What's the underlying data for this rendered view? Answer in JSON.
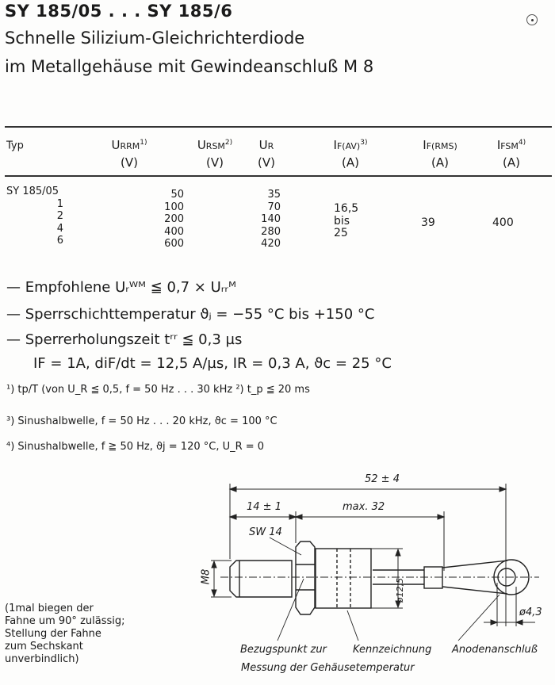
{
  "title": "SY 185/05 . . . SY 185/6",
  "subtitle_1": "Schnelle Silizium-Gleichrichterdiode",
  "subtitle_2": "im Metallgehäuse mit Gewindeanschluß M 8",
  "table": {
    "headers": [
      {
        "main": "Typ",
        "sub": "",
        "sup": "",
        "unit": ""
      },
      {
        "main": "U",
        "sub": "RRM",
        "sup": "1)",
        "unit": "(V)"
      },
      {
        "main": "U",
        "sub": "RSM",
        "sup": "2)",
        "unit": "(V)"
      },
      {
        "main": "U",
        "sub": "R",
        "sup": "",
        "unit": "(V)"
      },
      {
        "main": "I",
        "sub": "F(AV)",
        "sup": "3)",
        "unit": "(A)"
      },
      {
        "main": "I",
        "sub": "F(RMS)",
        "sup": "",
        "unit": "(A)"
      },
      {
        "main": "I",
        "sub": "FSM",
        "sup": "4)",
        "unit": "(A)"
      }
    ],
    "types": [
      "SY  185/05",
      "1",
      "2",
      "4",
      "6"
    ],
    "urrm": [
      "50",
      "100",
      "200",
      "400",
      "600"
    ],
    "ur": [
      "35",
      "70",
      "140",
      "280",
      "420"
    ],
    "ifav": [
      "16,5",
      "bis",
      "25"
    ],
    "ifrms": "39",
    "ifsm": "400"
  },
  "specs": [
    "— Empfohlene Uᵣᵂᴹ ≦ 0,7 × Uᵣᵣᴹ",
    "— Sperrschichttemperatur     ϑⱼ = −55 °C bis +150 °C",
    "— Sperrerholungszeit tʳʳ ≦ 0,3 µs",
    "IF = 1A, diF/dt = 12,5 A/µs, IR = 0,3 A, ϑc =  25 °C"
  ],
  "footnotes": [
    "¹)  tp/T (von U_R ≦ 0,5, f = 50 Hz . . . 30 kHz  ²) t_p ≦ 20 ms",
    "³)  Sinushalbwelle, f = 50 Hz . . . 20 kHz,  ϑc = 100 °C",
    "⁴)  Sinushalbwelle, f ≧ 50 Hz,  ϑj  = 120 °C,  U_R = 0"
  ],
  "drawing": {
    "dim_total": "52 ± 4",
    "dim_thread": "14 ± 1",
    "dim_body": "max. 32",
    "wrench": "SW 14",
    "thread": "M8",
    "diameter_body": "ø12,5",
    "diameter_hole": "ø4,3",
    "label_ref_1": "Bezugspunkt zur",
    "label_ref_2": "Messung  der Gehäusetemperatur",
    "label_marking": "Kennzeichnung",
    "label_anode": "Anodenanschluß"
  },
  "note": [
    "(1mal biegen der",
    "Fahne um 90° zulässig;",
    "Stellung der Fahne",
    "zum Sechskant",
    "unverbindlich)"
  ]
}
